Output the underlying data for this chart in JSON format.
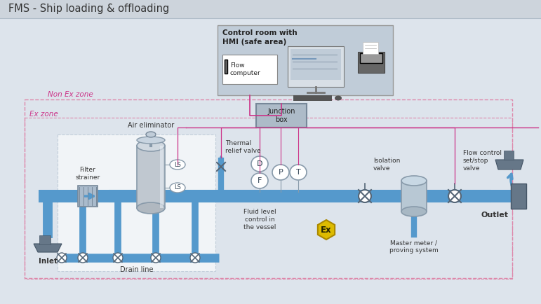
{
  "title": "FMS - Ship loading & offloading",
  "bg_color": "#dde4ec",
  "title_bg": "#cdd4dc",
  "pipe_color": "#5599cc",
  "pipe_dark": "#4477aa",
  "signal_color": "#cc3388",
  "box_bg": "#aabbc8",
  "white": "#ffffff",
  "dark_gray": "#556677",
  "med_gray": "#889aaa",
  "non_ex_color": "#cc3388",
  "ex_color": "#cc3388",
  "control_room_label": "Control room with\nHMI (safe area)",
  "flow_computer_label": "Flow\ncomputer",
  "junction_box_label": "Junction\nbox",
  "non_ex_label": "Non Ex zone",
  "ex_label": "Ex zone",
  "inlet_label": "Inlet",
  "outlet_label": "Outlet",
  "filter_strainer_label": "Filter\nstrainer",
  "air_eliminator_label": "Air eliminator",
  "thermal_relief_label": "Thermal\nrelief valve",
  "fluid_level_label": "Fluid level\ncontrol in\nthe vessel",
  "isolation_valve_label": "Isolation\nvalve",
  "flow_control_label": "Flow control\nset/stop\nvalve",
  "drain_line_label": "Drain line",
  "master_meter_label": "Master meter /\nproving system",
  "figw": 7.71,
  "figh": 4.34,
  "dpi": 100
}
